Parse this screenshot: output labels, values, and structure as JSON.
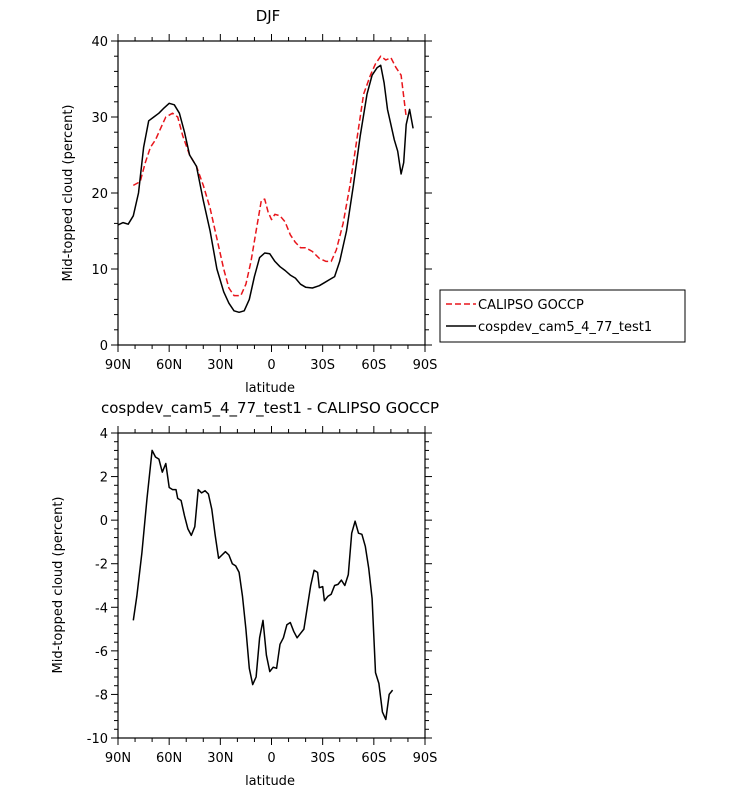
{
  "chart_data": [
    {
      "type": "line",
      "title": "DJF",
      "xlabel": "latitude",
      "ylabel": "Mid-topped cloud (percent)",
      "xlim": [
        -90,
        90
      ],
      "ylim": [
        0,
        40
      ],
      "x_ticks": [
        -90,
        -60,
        -30,
        0,
        30,
        60,
        90
      ],
      "x_tick_labels": [
        "90N",
        "60N",
        "30N",
        "0",
        "30S",
        "60S",
        "90S"
      ],
      "y_ticks": [
        0,
        10,
        20,
        30,
        40
      ],
      "y_tick_labels": [
        "0",
        "10",
        "20",
        "30",
        "40"
      ],
      "legend_position": "right",
      "series": [
        {
          "name": "CALIPSO GOCCP",
          "color": "#e8151b",
          "style": "dashed",
          "points": [
            [
              -81,
              21
            ],
            [
              -77,
              21.5
            ],
            [
              -74,
              24
            ],
            [
              -71,
              26
            ],
            [
              -68,
              27
            ],
            [
              -65,
              28.5
            ],
            [
              -62,
              30
            ],
            [
              -58,
              30.5
            ],
            [
              -55,
              30
            ],
            [
              -52,
              27.5
            ],
            [
              -48,
              25
            ],
            [
              -44,
              23.5
            ],
            [
              -40,
              21
            ],
            [
              -36,
              18
            ],
            [
              -32,
              14
            ],
            [
              -28,
              10
            ],
            [
              -25,
              7.5
            ],
            [
              -22,
              6.5
            ],
            [
              -18,
              6.5
            ],
            [
              -15,
              8
            ],
            [
              -12,
              11
            ],
            [
              -9,
              15
            ],
            [
              -6,
              19
            ],
            [
              -4,
              19.2
            ],
            [
              -2,
              17.5
            ],
            [
              0,
              16.5
            ],
            [
              2,
              17.2
            ],
            [
              5,
              17
            ],
            [
              8,
              16.2
            ],
            [
              11,
              14.5
            ],
            [
              14,
              13.5
            ],
            [
              17,
              12.8
            ],
            [
              20,
              12.8
            ],
            [
              24,
              12.3
            ],
            [
              28,
              11.4
            ],
            [
              32,
              11
            ],
            [
              35,
              11
            ],
            [
              38,
              12.5
            ],
            [
              42,
              16
            ],
            [
              46,
              21
            ],
            [
              50,
              27
            ],
            [
              54,
              33
            ],
            [
              58,
              35.5
            ],
            [
              61,
              37
            ],
            [
              64,
              38
            ],
            [
              67,
              37.5
            ],
            [
              70,
              37.8
            ],
            [
              73,
              36.5
            ],
            [
              76,
              35.5
            ],
            [
              79,
              30
            ]
          ]
        },
        {
          "name": "cospdev_cam5_4_77_test1",
          "color": "#000000",
          "style": "solid",
          "points": [
            [
              -90,
              15.8
            ],
            [
              -87,
              16.1
            ],
            [
              -84,
              15.9
            ],
            [
              -81,
              17
            ],
            [
              -78,
              20
            ],
            [
              -75,
              26
            ],
            [
              -72,
              29.5
            ],
            [
              -69,
              30
            ],
            [
              -66,
              30.5
            ],
            [
              -63,
              31.2
            ],
            [
              -60,
              31.8
            ],
            [
              -57,
              31.6
            ],
            [
              -54,
              30.5
            ],
            [
              -51,
              28
            ],
            [
              -48,
              25
            ],
            [
              -44,
              23.5
            ],
            [
              -40,
              19
            ],
            [
              -36,
              15
            ],
            [
              -32,
              10
            ],
            [
              -28,
              7
            ],
            [
              -25,
              5.5
            ],
            [
              -22,
              4.5
            ],
            [
              -19,
              4.3
            ],
            [
              -16,
              4.5
            ],
            [
              -13,
              6
            ],
            [
              -10,
              9
            ],
            [
              -7,
              11.5
            ],
            [
              -4,
              12.1
            ],
            [
              -1,
              12
            ],
            [
              2,
              11
            ],
            [
              5,
              10.3
            ],
            [
              8,
              9.8
            ],
            [
              11,
              9.2
            ],
            [
              14,
              8.8
            ],
            [
              17,
              8
            ],
            [
              20,
              7.6
            ],
            [
              24,
              7.5
            ],
            [
              28,
              7.8
            ],
            [
              31,
              8.2
            ],
            [
              34,
              8.6
            ],
            [
              37,
              9
            ],
            [
              40,
              11
            ],
            [
              44,
              15
            ],
            [
              48,
              21
            ],
            [
              52,
              27.5
            ],
            [
              56,
              33
            ],
            [
              59,
              35.5
            ],
            [
              62,
              36.5
            ],
            [
              64,
              36.8
            ],
            [
              66,
              34.5
            ],
            [
              68,
              31
            ],
            [
              70,
              29
            ],
            [
              72,
              27
            ],
            [
              74,
              25.5
            ],
            [
              76,
              22.5
            ],
            [
              77.5,
              24
            ],
            [
              79,
              29
            ],
            [
              81,
              31
            ],
            [
              83,
              28.5
            ]
          ]
        }
      ]
    },
    {
      "type": "line",
      "title": "cospdev_cam5_4_77_test1 - CALIPSO GOCCP",
      "xlabel": "latitude",
      "ylabel": "Mid-topped cloud (percent)",
      "xlim": [
        -90,
        90
      ],
      "ylim": [
        -10,
        4
      ],
      "x_ticks": [
        -90,
        -60,
        -30,
        0,
        30,
        60,
        90
      ],
      "x_tick_labels": [
        "90N",
        "60N",
        "30N",
        "0",
        "30S",
        "60S",
        "90S"
      ],
      "y_ticks": [
        -10,
        -8,
        -6,
        -4,
        -2,
        0,
        2,
        4
      ],
      "y_tick_labels": [
        "-10",
        "-8",
        "-6",
        "-4",
        "-2",
        "0",
        "2",
        "4"
      ],
      "series": [
        {
          "color": "#000000",
          "style": "solid",
          "points": [
            [
              -81,
              -4.6
            ],
            [
              -79,
              -3.5
            ],
            [
              -76,
              -1.5
            ],
            [
              -73,
              1
            ],
            [
              -70,
              3.2
            ],
            [
              -68,
              2.9
            ],
            [
              -66,
              2.8
            ],
            [
              -64,
              2.2
            ],
            [
              -62,
              2.6
            ],
            [
              -60,
              1.5
            ],
            [
              -58,
              1.4
            ],
            [
              -56,
              1.4
            ],
            [
              -55,
              1
            ],
            [
              -53,
              0.9
            ],
            [
              -51,
              0.2
            ],
            [
              -49,
              -0.4
            ],
            [
              -47,
              -0.7
            ],
            [
              -45,
              -0.3
            ],
            [
              -43,
              1.4
            ],
            [
              -41,
              1.25
            ],
            [
              -39,
              1.35
            ],
            [
              -37,
              1.2
            ],
            [
              -35,
              0.5
            ],
            [
              -33,
              -0.7
            ],
            [
              -31,
              -1.75
            ],
            [
              -29,
              -1.6
            ],
            [
              -27,
              -1.45
            ],
            [
              -25,
              -1.6
            ],
            [
              -23,
              -2
            ],
            [
              -21,
              -2.1
            ],
            [
              -19,
              -2.4
            ],
            [
              -17,
              -3.5
            ],
            [
              -15,
              -5
            ],
            [
              -13,
              -6.8
            ],
            [
              -11,
              -7.55
            ],
            [
              -9,
              -7.2
            ],
            [
              -7,
              -5.4
            ],
            [
              -5,
              -4.6
            ],
            [
              -3,
              -6.2
            ],
            [
              -1,
              -6.95
            ],
            [
              1,
              -6.75
            ],
            [
              3,
              -6.8
            ],
            [
              5,
              -5.7
            ],
            [
              7,
              -5.4
            ],
            [
              9,
              -4.8
            ],
            [
              11,
              -4.7
            ],
            [
              13,
              -5.1
            ],
            [
              15,
              -5.4
            ],
            [
              17,
              -5.2
            ],
            [
              19,
              -5
            ],
            [
              21,
              -4
            ],
            [
              23,
              -3
            ],
            [
              25,
              -2.3
            ],
            [
              27,
              -2.4
            ],
            [
              28,
              -3.1
            ],
            [
              30,
              -3.05
            ],
            [
              31,
              -3.7
            ],
            [
              33,
              -3.5
            ],
            [
              35,
              -3.4
            ],
            [
              37,
              -3
            ],
            [
              39,
              -2.95
            ],
            [
              41,
              -2.75
            ],
            [
              43,
              -3
            ],
            [
              45,
              -2.5
            ],
            [
              47,
              -0.6
            ],
            [
              49,
              -0.05
            ],
            [
              51,
              -0.6
            ],
            [
              53,
              -0.65
            ],
            [
              55,
              -1.2
            ],
            [
              57,
              -2.2
            ],
            [
              59,
              -3.6
            ],
            [
              61,
              -7
            ],
            [
              63,
              -7.5
            ],
            [
              65,
              -8.8
            ],
            [
              67,
              -9.15
            ],
            [
              69,
              -8
            ],
            [
              71,
              -7.8
            ]
          ]
        }
      ]
    }
  ]
}
